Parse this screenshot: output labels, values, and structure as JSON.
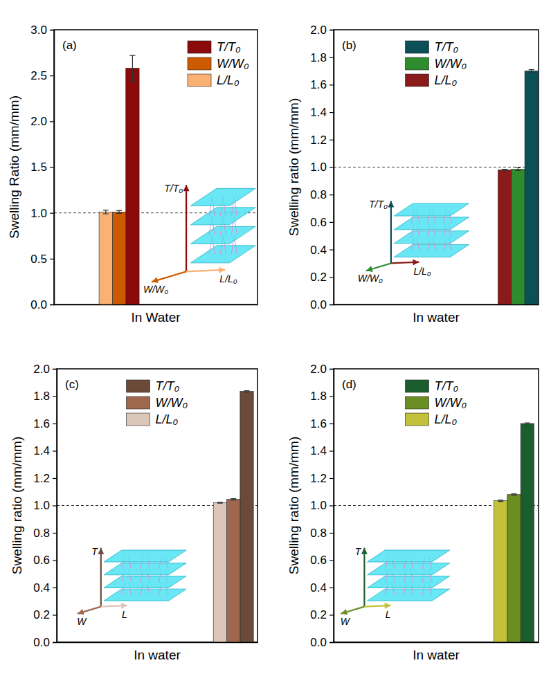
{
  "chart_data": [
    {
      "type": "bar",
      "title": "(a)",
      "y_label": "Swelling Ratio (mm/mm)",
      "categories": [
        "In Water"
      ],
      "series": [
        {
          "name": "T/T₀",
          "color": "#8b0a0a",
          "values": [
            2.58
          ],
          "errors": [
            0.14
          ]
        },
        {
          "name": "W/W₀",
          "color": "#cc5a00",
          "values": [
            1.01
          ],
          "errors": [
            0.015
          ]
        },
        {
          "name": "L/L₀",
          "color": "#fbb074",
          "values": [
            1.01
          ],
          "errors": [
            0.02
          ]
        }
      ],
      "ylim": [
        0,
        3
      ],
      "yticks": [
        {
          "value": 0,
          "label": "0.0"
        },
        0.5,
        {
          "value": 1,
          "label": "1.0"
        },
        1.5,
        {
          "value": 2,
          "label": "2.0"
        },
        2.5,
        {
          "value": 3,
          "label": "3.0"
        }
      ],
      "reference_y": 1,
      "annotations": [
        "T/T₀",
        "W/W₀",
        "L/L₀"
      ],
      "legend": "upper right"
    },
    {
      "type": "bar",
      "title": "(b)",
      "y_label": "Swelling ratio (mm/mm)",
      "categories": [
        "In water"
      ],
      "series": [
        {
          "name": "T/T₀",
          "color": "#0b4f57",
          "values": [
            1.7
          ],
          "errors": [
            0.01
          ]
        },
        {
          "name": "W/W₀",
          "color": "#2e8b2e",
          "values": [
            0.985
          ],
          "errors": [
            0.01
          ]
        },
        {
          "name": "L/L₀",
          "color": "#8b1a1a",
          "values": [
            0.98
          ],
          "errors": [
            0.005
          ]
        }
      ],
      "ylim": [
        0,
        2
      ],
      "yticks": [
        {
          "value": 0,
          "label": "0.0"
        },
        0.2,
        0.4,
        0.6,
        0.8,
        {
          "value": 1,
          "label": "1.0"
        },
        1.2,
        1.4,
        1.6,
        1.8,
        {
          "value": 2,
          "label": "2.0"
        }
      ],
      "reference_y": 1,
      "annotations": [
        "T/T₀",
        "W/W₀",
        "L/L₀"
      ],
      "legend": "upper center"
    },
    {
      "type": "bar",
      "title": "(c)",
      "y_label": "Swelling ratio (mm/mm)",
      "categories": [
        "In water"
      ],
      "series": [
        {
          "name": "T/T₀",
          "color": "#6b4a3a",
          "values": [
            1.835
          ],
          "errors": [
            0.005
          ]
        },
        {
          "name": "W/W₀",
          "color": "#a0674f",
          "values": [
            1.045
          ],
          "errors": [
            0.005
          ]
        },
        {
          "name": "L/L₀",
          "color": "#dcc6b9",
          "values": [
            1.02
          ],
          "errors": [
            0.003
          ]
        }
      ],
      "ylim": [
        0,
        2
      ],
      "yticks": [
        {
          "value": 0,
          "label": "0.0"
        },
        0.2,
        0.4,
        0.6,
        0.8,
        {
          "value": 1,
          "label": "1.0"
        },
        1.2,
        1.4,
        1.6,
        1.8,
        {
          "value": 2,
          "label": "2.0"
        }
      ],
      "reference_y": 1,
      "annotations": [
        "T",
        "W",
        "L"
      ],
      "legend": "upper center"
    },
    {
      "type": "bar",
      "title": "(d)",
      "y_label": "Swelling ratio (mm/mm)",
      "categories": [
        "In water"
      ],
      "series": [
        {
          "name": "T/T₀",
          "color": "#1b5e2e",
          "values": [
            1.6
          ],
          "errors": [
            0.005
          ]
        },
        {
          "name": "W/W₀",
          "color": "#6b8e23",
          "values": [
            1.08
          ],
          "errors": [
            0.005
          ]
        },
        {
          "name": "L/L₀",
          "color": "#c2c23a",
          "values": [
            1.035
          ],
          "errors": [
            0.005
          ]
        }
      ],
      "ylim": [
        0,
        2
      ],
      "yticks": [
        {
          "value": 0,
          "label": "0.0"
        },
        0.2,
        0.4,
        0.6,
        0.8,
        {
          "value": 1,
          "label": "1.0"
        },
        1.2,
        1.4,
        1.6,
        1.8,
        {
          "value": 2,
          "label": "2.0"
        }
      ],
      "reference_y": 1,
      "annotations": [
        "T",
        "W",
        "L"
      ],
      "legend": "upper center"
    }
  ]
}
